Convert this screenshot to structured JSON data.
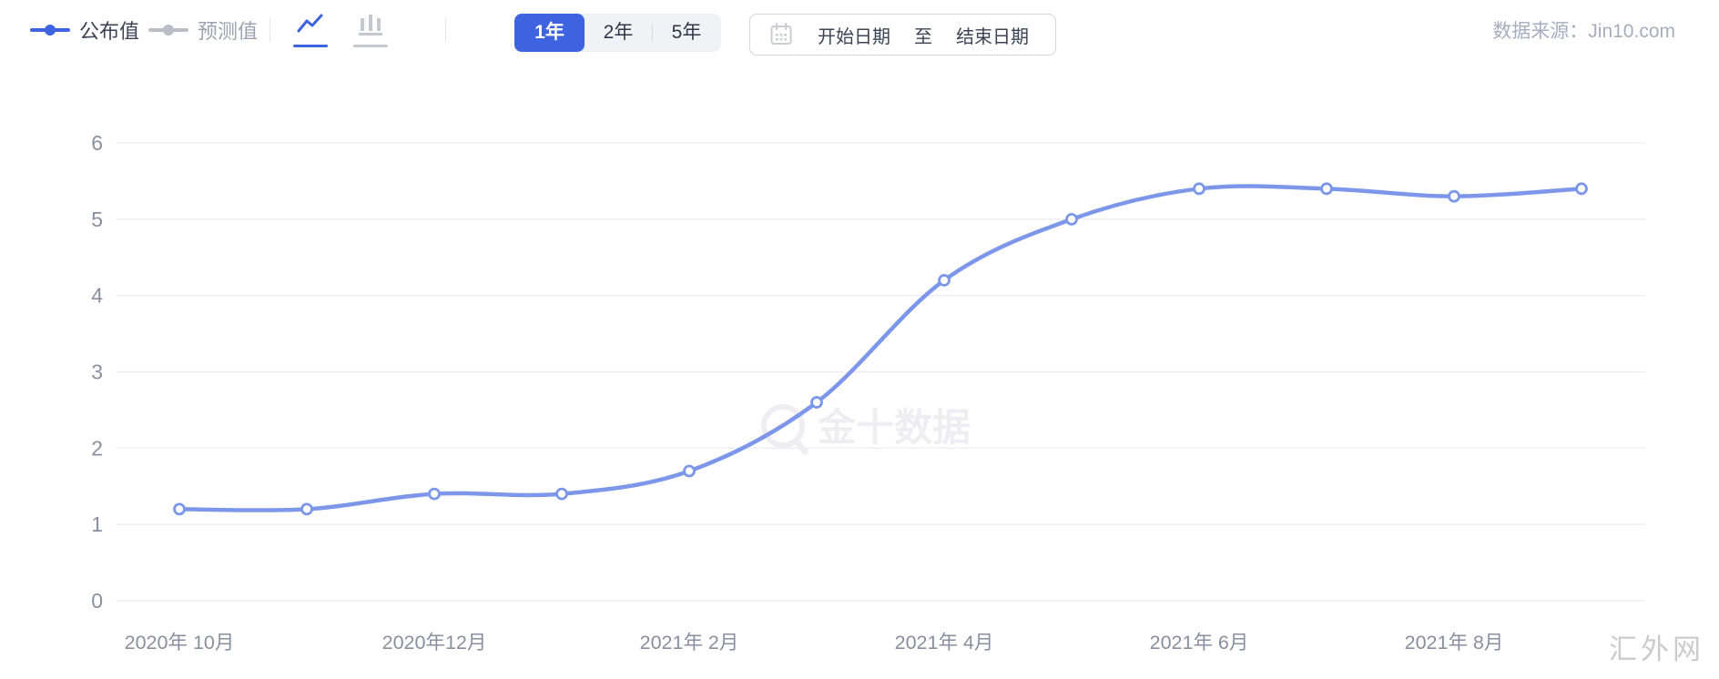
{
  "header": {
    "legend": [
      {
        "label": "公布值",
        "marker_color": "#3d63e1",
        "text_color": "#3a4254"
      },
      {
        "label": "预测值",
        "marker_color": "#b9bdc6",
        "text_color": "#9ca3b0"
      }
    ],
    "chart_type_switch": [
      {
        "name": "line-chart",
        "active": true,
        "color": "#3d63e1"
      },
      {
        "name": "bar-chart",
        "active": false,
        "color": "#c5c8ce"
      }
    ],
    "range_buttons": [
      {
        "label": "1年",
        "active": true
      },
      {
        "label": "2年",
        "active": false
      },
      {
        "label": "5年",
        "active": false
      }
    ],
    "date_picker": {
      "start_placeholder": "开始日期",
      "separator": "至",
      "end_placeholder": "结束日期"
    },
    "data_source": "数据来源：Jin10.com"
  },
  "chart_data": {
    "type": "line",
    "series": [
      {
        "name": "公布值",
        "color": "#7c97e9",
        "values": [
          1.2,
          1.2,
          1.4,
          1.4,
          1.7,
          2.6,
          4.2,
          5.0,
          5.4,
          5.4,
          5.3,
          5.4
        ]
      }
    ],
    "x_tick_labels": [
      "2020年 10月",
      "2020年12月",
      "2021年 2月",
      "2021年 4月",
      "2021年 6月",
      "2021年 8月"
    ],
    "x_tick_point_indices": [
      0,
      2,
      4,
      6,
      8,
      10
    ],
    "y_ticks": [
      0,
      1,
      2,
      3,
      4,
      5,
      6
    ],
    "ylim": [
      0,
      6
    ],
    "grid": true,
    "legend_position": "top-left",
    "marker": "open-circle"
  },
  "watermark": {
    "text": "金十数据"
  },
  "site_mark": "汇外网",
  "colors": {
    "accent": "#3d63e1",
    "line": "#7c97e9",
    "grid": "#eceef1",
    "axis_text": "#898f9e",
    "watermark": "#eeeef2",
    "site_mark": "#cbcbcb"
  }
}
